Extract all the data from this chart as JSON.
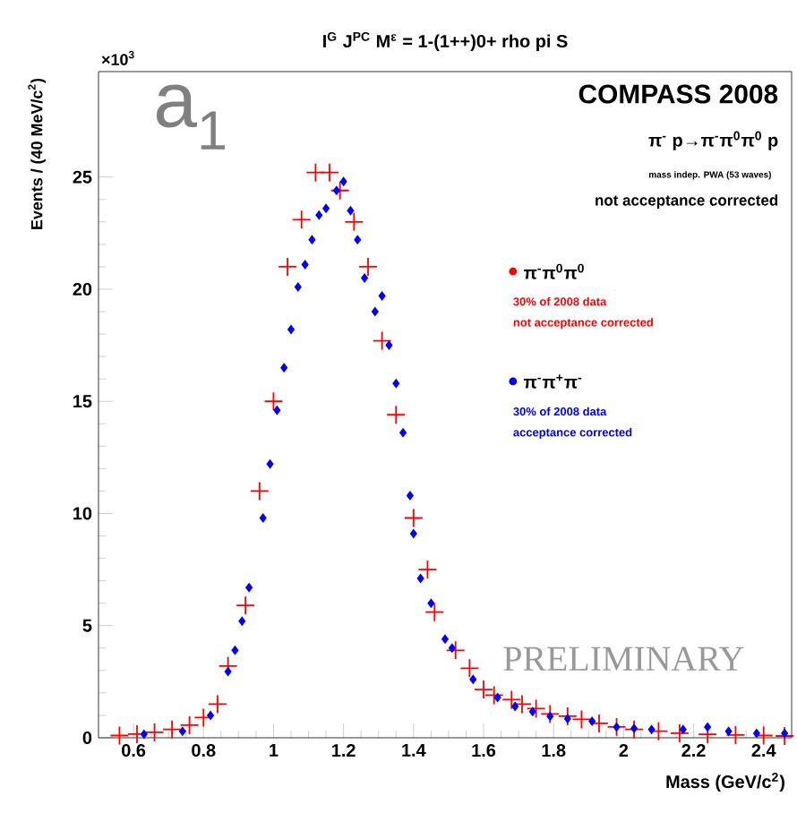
{
  "chart_data": {
    "type": "scatter",
    "title": "I$^{G}$ J$^{PC}$ M$^{ε}$ = 1-(1++)0+ rho pi S",
    "xlabel": "Mass (GeV/c$^{2}$)",
    "ylabel": "Events / (40 MeV/c$^{2}$)",
    "xlim": [
      0.5,
      2.48
    ],
    "ylim": [
      0,
      29.7
    ],
    "xticks": [
      0.6,
      0.8,
      1,
      1.2,
      1.4,
      1.6,
      1.8,
      2,
      2.2,
      2.4
    ],
    "yticks": [
      0,
      5,
      10,
      15,
      20,
      25
    ],
    "grid": false,
    "legend": "right",
    "series": [
      {
        "name": "π$^{-}$π$^{0}$π$^{0}$",
        "color": "#ff0000",
        "marker": "cross",
        "x": [
          0.56,
          0.61,
          0.66,
          0.71,
          0.76,
          0.8,
          0.84,
          0.87,
          0.92,
          0.96,
          1.0,
          1.04,
          1.08,
          1.12,
          1.16,
          1.19,
          1.23,
          1.27,
          1.31,
          1.35,
          1.4,
          1.44,
          1.46,
          1.52,
          1.56,
          1.6,
          1.63,
          1.68,
          1.71,
          1.75,
          1.79,
          1.84,
          1.88,
          1.93,
          1.98,
          2.03,
          2.1,
          2.16,
          2.24,
          2.32,
          2.4,
          2.46
        ],
        "values": [
          0.1,
          0.16,
          0.24,
          0.37,
          0.56,
          0.9,
          1.5,
          3.2,
          5.9,
          11.0,
          15.0,
          21.0,
          23.1,
          25.2,
          25.2,
          24.4,
          23.0,
          21.0,
          17.7,
          14.4,
          9.8,
          7.5,
          5.6,
          3.9,
          3.1,
          2.15,
          1.9,
          1.7,
          1.5,
          1.3,
          1.06,
          0.96,
          0.82,
          0.64,
          0.48,
          0.37,
          0.29,
          0.2,
          0.15,
          0.12,
          0.1,
          0.08
        ]
      },
      {
        "name": "π$^{-}$π$^{+}$π$^{-}$",
        "color": "#0000ff",
        "marker": "diamond",
        "x": [
          0.63,
          0.74,
          0.82,
          0.87,
          0.89,
          0.91,
          0.93,
          0.97,
          0.99,
          1.01,
          1.03,
          1.05,
          1.07,
          1.09,
          1.11,
          1.13,
          1.15,
          1.18,
          1.2,
          1.22,
          1.24,
          1.26,
          1.29,
          1.31,
          1.33,
          1.35,
          1.37,
          1.39,
          1.4,
          1.42,
          1.45,
          1.49,
          1.51,
          1.57,
          1.64,
          1.69,
          1.74,
          1.79,
          1.84,
          1.91,
          1.98,
          2.03,
          2.08,
          2.17,
          2.24,
          2.3,
          2.38,
          2.46
        ],
        "values": [
          0.16,
          0.29,
          1.0,
          2.95,
          3.9,
          5.2,
          6.7,
          9.8,
          12.2,
          14.6,
          16.5,
          18.2,
          20.1,
          21.1,
          22.2,
          23.3,
          23.6,
          24.4,
          24.8,
          23.5,
          22.2,
          20.5,
          19.0,
          19.7,
          17.5,
          15.8,
          13.6,
          10.8,
          9.1,
          7.1,
          6.0,
          4.4,
          4.0,
          2.6,
          1.8,
          1.4,
          1.17,
          0.96,
          0.85,
          0.74,
          0.48,
          0.42,
          0.37,
          0.37,
          0.48,
          0.29,
          0.2,
          0.2
        ]
      }
    ],
    "annotations": [
      "×10$^{3}$",
      "a$_{1}$",
      "COMPASS 2008",
      "π$^{-}$ p→π$^{-}$π$^{0}$π$^{0}$ p",
      "mass indep. PWA (53 waves)",
      "not acceptance corrected",
      "30% of 2008 data",
      "not acceptance corrected",
      "30% of 2008 data",
      "acceptance corrected",
      "PRELIMINARY"
    ]
  }
}
